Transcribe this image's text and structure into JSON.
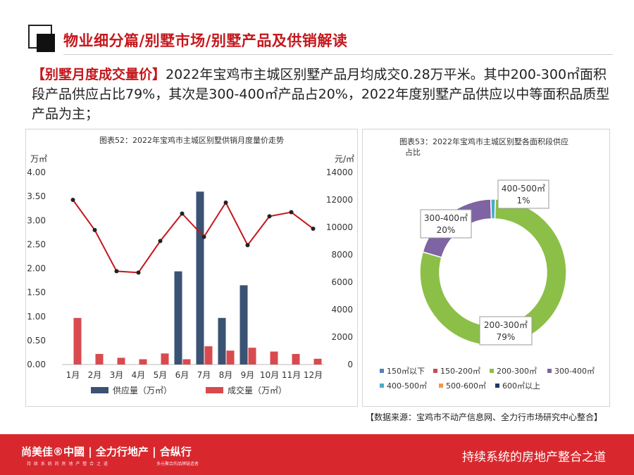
{
  "header": {
    "title": "物业细分篇/别墅市场/别墅产品及供销解读"
  },
  "intro": {
    "highlight": "【别墅月度成交量价】",
    "text": "2022年宝鸡市主城区别墅产品月均成交0.28万平米。其中200-300㎡面积段产品供应占比79%，其次是300-400㎡产品占20%，2022年度别墅产品供应以中等面积品质型产品为主；"
  },
  "chart_data": [
    {
      "type": "bar",
      "title": "图表52：2022年宝鸡市主城区别墅供销月度量价走势",
      "y_left_unit": "万㎡",
      "y_right_unit": "元/㎡",
      "ylim_left": [
        0,
        4.0
      ],
      "ylim_right": [
        0,
        14000
      ],
      "y_left_ticks": [
        "0.00",
        "0.50",
        "1.00",
        "1.50",
        "2.00",
        "2.50",
        "3.00",
        "3.50",
        "4.00"
      ],
      "y_right_ticks": [
        "0",
        "2000",
        "4000",
        "6000",
        "8000",
        "10000",
        "12000",
        "14000"
      ],
      "categories": [
        "1月",
        "2月",
        "3月",
        "4月",
        "5月",
        "6月",
        "7月",
        "8月",
        "9月",
        "10月",
        "11月",
        "12月"
      ],
      "series": [
        {
          "name": "供应量（万㎡）",
          "kind": "bar",
          "axis": "left",
          "color": "#3a5273",
          "values": [
            0,
            0,
            0,
            0,
            0,
            1.94,
            3.6,
            0.97,
            1.65,
            0,
            0,
            0
          ]
        },
        {
          "name": "成交量（万㎡）",
          "kind": "bar",
          "axis": "left",
          "color": "#d94a4e",
          "values": [
            0.97,
            0.22,
            0.14,
            0.11,
            0.23,
            0.11,
            0.38,
            0.29,
            0.35,
            0.27,
            0.22,
            0.12
          ]
        },
        {
          "name": "",
          "kind": "line",
          "axis": "right",
          "color": "#c4171c",
          "marker_color": "#222222",
          "values": [
            12000,
            9800,
            6800,
            6700,
            9000,
            11000,
            9300,
            11800,
            8700,
            10800,
            11100,
            9900
          ]
        }
      ],
      "legend_position": "bottom"
    },
    {
      "type": "pie",
      "subtype": "donut",
      "title_lines": [
        "图表53：2022年宝鸡市主城区别墅各面积段供应",
        "占比"
      ],
      "slices": [
        {
          "label": "150㎡以下",
          "value": 0,
          "color": "#4f81bd"
        },
        {
          "label": "150-200㎡",
          "value": 0,
          "color": "#c0504d"
        },
        {
          "label": "200-300㎡",
          "value": 79,
          "color": "#8cbf47",
          "display": "79%"
        },
        {
          "label": "300-400㎡",
          "value": 20,
          "color": "#7e64a2",
          "display": "20%"
        },
        {
          "label": "400-500㎡",
          "value": 1,
          "color": "#4bacc6",
          "display": "1%"
        },
        {
          "label": "500-600㎡",
          "value": 0,
          "color": "#f79646"
        },
        {
          "label": "600㎡以上",
          "value": 0,
          "color": "#1f3864"
        }
      ],
      "legend_position": "bottom"
    }
  ],
  "source": "【数据来源：宝鸡市不动产信息网、全力行市场研究中心整合】",
  "footer": {
    "brand": "尚美佳®中國 | 全力行地产 | 合纵行",
    "brand_sub": "持 续 系 统 的 房 地 产 整 合 之 道",
    "brand_sub2": "多元聚合的品牌链造者",
    "slogan": "持续系统的房地产整合之道"
  }
}
